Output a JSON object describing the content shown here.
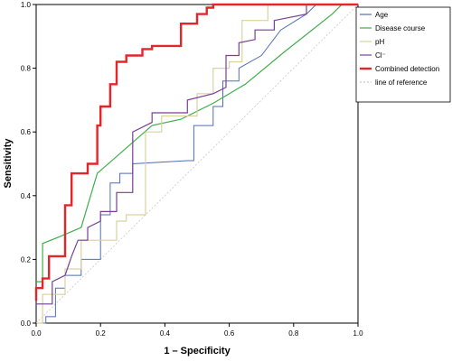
{
  "chart_data": {
    "type": "line",
    "xlabel": "1 – Specificity",
    "ylabel": "Sensitivity",
    "xlim": [
      0,
      1
    ],
    "ylim": [
      0,
      1
    ],
    "xticks": [
      "0.0",
      "0.2",
      "0.4",
      "0.6",
      "0.8",
      "1.0"
    ],
    "yticks": [
      "0.0",
      "0.2",
      "0.4",
      "0.6",
      "0.8",
      "1.0"
    ],
    "grid": false,
    "legend_position": "top-right",
    "series": [
      {
        "name": "Age",
        "color": "#4f6fb6",
        "width": 1,
        "dash": "",
        "points": [
          [
            0,
            0
          ],
          [
            0.03,
            0
          ],
          [
            0.03,
            0.02
          ],
          [
            0.06,
            0.02
          ],
          [
            0.06,
            0.11
          ],
          [
            0.09,
            0.11
          ],
          [
            0.09,
            0.15
          ],
          [
            0.14,
            0.15
          ],
          [
            0.14,
            0.2
          ],
          [
            0.2,
            0.2
          ],
          [
            0.2,
            0.34
          ],
          [
            0.23,
            0.34
          ],
          [
            0.23,
            0.44
          ],
          [
            0.26,
            0.44
          ],
          [
            0.26,
            0.47
          ],
          [
            0.3,
            0.47
          ],
          [
            0.3,
            0.5
          ],
          [
            0.47,
            0.51
          ],
          [
            0.49,
            0.51
          ],
          [
            0.49,
            0.62
          ],
          [
            0.55,
            0.62
          ],
          [
            0.55,
            0.68
          ],
          [
            0.58,
            0.68
          ],
          [
            0.58,
            0.76
          ],
          [
            0.63,
            0.76
          ],
          [
            0.63,
            0.8
          ],
          [
            0.7,
            0.84
          ],
          [
            0.76,
            0.92
          ],
          [
            0.84,
            0.97
          ],
          [
            0.87,
            1
          ],
          [
            1,
            1
          ]
        ]
      },
      {
        "name": "Disease course",
        "color": "#3fae49",
        "width": 1.2,
        "dash": "",
        "points": [
          [
            0,
            0.13
          ],
          [
            0.02,
            0.13
          ],
          [
            0.02,
            0.25
          ],
          [
            0.07,
            0.27
          ],
          [
            0.14,
            0.3
          ],
          [
            0.19,
            0.47
          ],
          [
            0.36,
            0.62
          ],
          [
            0.45,
            0.64
          ],
          [
            0.55,
            0.69
          ],
          [
            0.65,
            0.75
          ],
          [
            0.77,
            0.85
          ],
          [
            0.92,
            0.97
          ],
          [
            0.95,
            1
          ],
          [
            1,
            1
          ]
        ]
      },
      {
        "name": "pH",
        "color": "#d9d2a0",
        "width": 1.2,
        "dash": "",
        "points": [
          [
            0,
            0
          ],
          [
            0.02,
            0
          ],
          [
            0.02,
            0.09
          ],
          [
            0.09,
            0.09
          ],
          [
            0.09,
            0.17
          ],
          [
            0.14,
            0.17
          ],
          [
            0.14,
            0.26
          ],
          [
            0.25,
            0.26
          ],
          [
            0.25,
            0.32
          ],
          [
            0.28,
            0.32
          ],
          [
            0.28,
            0.34
          ],
          [
            0.34,
            0.34
          ],
          [
            0.34,
            0.6
          ],
          [
            0.39,
            0.6
          ],
          [
            0.39,
            0.65
          ],
          [
            0.5,
            0.65
          ],
          [
            0.5,
            0.72
          ],
          [
            0.55,
            0.72
          ],
          [
            0.55,
            0.8
          ],
          [
            0.6,
            0.8
          ],
          [
            0.6,
            0.82
          ],
          [
            0.64,
            0.82
          ],
          [
            0.64,
            0.95
          ],
          [
            0.72,
            0.95
          ],
          [
            0.72,
            1
          ],
          [
            1,
            1
          ]
        ]
      },
      {
        "name": "Cl⁻",
        "color": "#7a3f96",
        "width": 1.2,
        "dash": "",
        "points": [
          [
            0,
            0.06
          ],
          [
            0.05,
            0.06
          ],
          [
            0.05,
            0.13
          ],
          [
            0.09,
            0.15
          ],
          [
            0.11,
            0.21
          ],
          [
            0.13,
            0.26
          ],
          [
            0.16,
            0.26
          ],
          [
            0.16,
            0.3
          ],
          [
            0.2,
            0.32
          ],
          [
            0.2,
            0.35
          ],
          [
            0.25,
            0.35
          ],
          [
            0.25,
            0.41
          ],
          [
            0.3,
            0.41
          ],
          [
            0.3,
            0.6
          ],
          [
            0.36,
            0.63
          ],
          [
            0.36,
            0.66
          ],
          [
            0.47,
            0.66
          ],
          [
            0.47,
            0.7
          ],
          [
            0.55,
            0.72
          ],
          [
            0.59,
            0.74
          ],
          [
            0.59,
            0.84
          ],
          [
            0.63,
            0.84
          ],
          [
            0.63,
            0.88
          ],
          [
            0.68,
            0.89
          ],
          [
            0.68,
            0.92
          ],
          [
            0.74,
            0.92
          ],
          [
            0.74,
            0.95
          ],
          [
            0.84,
            0.97
          ],
          [
            0.84,
            1
          ],
          [
            1,
            1
          ]
        ]
      },
      {
        "name": "Combined detection",
        "color": "#e4252a",
        "width": 2.4,
        "dash": "",
        "points": [
          [
            0,
            0.07
          ],
          [
            0,
            0.11
          ],
          [
            0.02,
            0.11
          ],
          [
            0.02,
            0.14
          ],
          [
            0.04,
            0.14
          ],
          [
            0.04,
            0.21
          ],
          [
            0.09,
            0.21
          ],
          [
            0.09,
            0.37
          ],
          [
            0.11,
            0.37
          ],
          [
            0.11,
            0.47
          ],
          [
            0.16,
            0.47
          ],
          [
            0.16,
            0.5
          ],
          [
            0.19,
            0.5
          ],
          [
            0.19,
            0.62
          ],
          [
            0.2,
            0.62
          ],
          [
            0.2,
            0.68
          ],
          [
            0.23,
            0.68
          ],
          [
            0.23,
            0.75
          ],
          [
            0.25,
            0.75
          ],
          [
            0.25,
            0.82
          ],
          [
            0.28,
            0.82
          ],
          [
            0.28,
            0.84
          ],
          [
            0.33,
            0.84
          ],
          [
            0.33,
            0.86
          ],
          [
            0.36,
            0.86
          ],
          [
            0.36,
            0.87
          ],
          [
            0.45,
            0.87
          ],
          [
            0.45,
            0.94
          ],
          [
            0.5,
            0.94
          ],
          [
            0.5,
            0.97
          ],
          [
            0.53,
            0.97
          ],
          [
            0.53,
            0.99
          ],
          [
            0.55,
            0.99
          ],
          [
            0.55,
            1
          ],
          [
            1,
            1
          ]
        ]
      },
      {
        "name": "line of reference",
        "color": "#c8c8c8",
        "width": 0.8,
        "dash": "2,2",
        "points": [
          [
            0,
            0
          ],
          [
            1,
            1
          ]
        ]
      }
    ]
  }
}
